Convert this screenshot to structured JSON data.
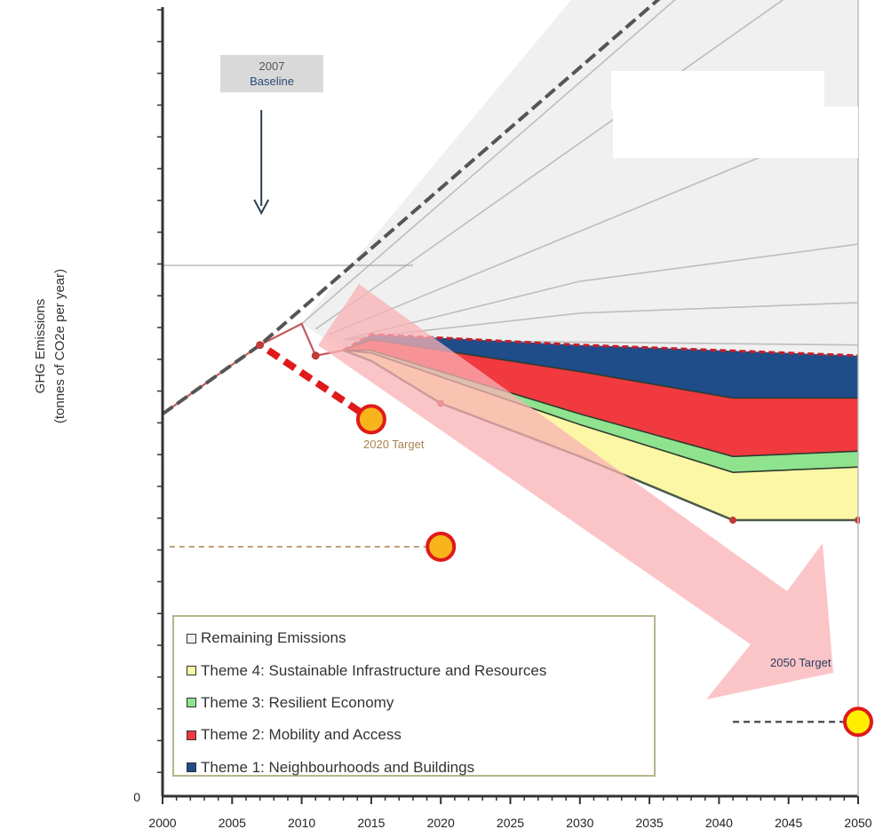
{
  "chart_data": {
    "type": "area",
    "ylabel_line1": "GHG Emissions",
    "ylabel_line2": "(tonnes of CO2e per year)",
    "x_ticks": [
      2000,
      2005,
      2010,
      2015,
      2020,
      2025,
      2030,
      2035,
      2040,
      2045,
      2050
    ],
    "y_tick_zero": "0",
    "xlim": [
      2000,
      2050
    ],
    "ylim": [
      0,
      150
    ],
    "gridline_y": [
      100
    ],
    "legend": {
      "placement": "bottom-left",
      "items": [
        {
          "label": "Remaining Emissions",
          "color": "#f0f0f0"
        },
        {
          "label": "Theme 4: Sustainable Infrastructure and Resources",
          "color": "#fcf7a4"
        },
        {
          "label": "Theme 3: Resilient Economy",
          "color": "#8fe38f"
        },
        {
          "label": "Theme 2: Mobility and Access",
          "color": "#f03a3f"
        },
        {
          "label": "Theme 1: Neighbourhoods and Buildings",
          "color": "#1f4d8a"
        }
      ]
    },
    "annotations": {
      "baseline_year": "2007",
      "baseline_label": "Baseline",
      "target_2020": "2020 Target",
      "target_2050": "2050 Target"
    },
    "series": {
      "bau_dashed": [
        [
          2000,
          72
        ],
        [
          2007,
          85
        ],
        [
          2040,
          160
        ]
      ],
      "history": [
        [
          2000,
          72
        ],
        [
          2007,
          85
        ],
        [
          2010,
          89
        ],
        [
          2011,
          83
        ],
        [
          2013,
          84
        ]
      ],
      "remaining_top": [
        [
          2013,
          84
        ],
        [
          2015,
          87
        ],
        [
          2030,
          85
        ],
        [
          2050,
          83
        ]
      ],
      "theme1_bottom": [
        [
          2013,
          84
        ],
        [
          2015,
          86
        ],
        [
          2030,
          80
        ],
        [
          2041,
          75
        ],
        [
          2050,
          75
        ]
      ],
      "theme2_bottom": [
        [
          2013,
          84
        ],
        [
          2015,
          84
        ],
        [
          2030,
          72
        ],
        [
          2041,
          64
        ],
        [
          2050,
          65
        ]
      ],
      "theme3_bottom": [
        [
          2013,
          84
        ],
        [
          2015,
          83.5
        ],
        [
          2030,
          70
        ],
        [
          2041,
          61
        ],
        [
          2050,
          62
        ]
      ],
      "theme4_bottom": [
        [
          2013,
          84
        ],
        [
          2015,
          82
        ],
        [
          2020,
          74
        ],
        [
          2030,
          64
        ],
        [
          2041,
          52
        ],
        [
          2050,
          52
        ]
      ],
      "remaining_lines": [
        [
          [
            2010,
            89
          ],
          [
            2050,
            180
          ]
        ],
        [
          [
            2011,
            88
          ],
          [
            2050,
            160
          ]
        ],
        [
          [
            2012,
            87
          ],
          [
            2050,
            128
          ]
        ],
        [
          [
            2013,
            86
          ],
          [
            2030,
            97
          ],
          [
            2050,
            104
          ]
        ],
        [
          [
            2013,
            86
          ],
          [
            2030,
            91
          ],
          [
            2050,
            93
          ]
        ],
        [
          [
            2013,
            86
          ],
          [
            2050,
            85
          ]
        ]
      ],
      "target_path_red_dotted": [
        [
          2007,
          85
        ],
        [
          2015,
          71
        ]
      ],
      "target_2020_level": 47,
      "target_2050_level": 14,
      "target_points": [
        [
          2015,
          71
        ],
        [
          2020,
          47
        ],
        [
          2050,
          14
        ]
      ]
    }
  }
}
